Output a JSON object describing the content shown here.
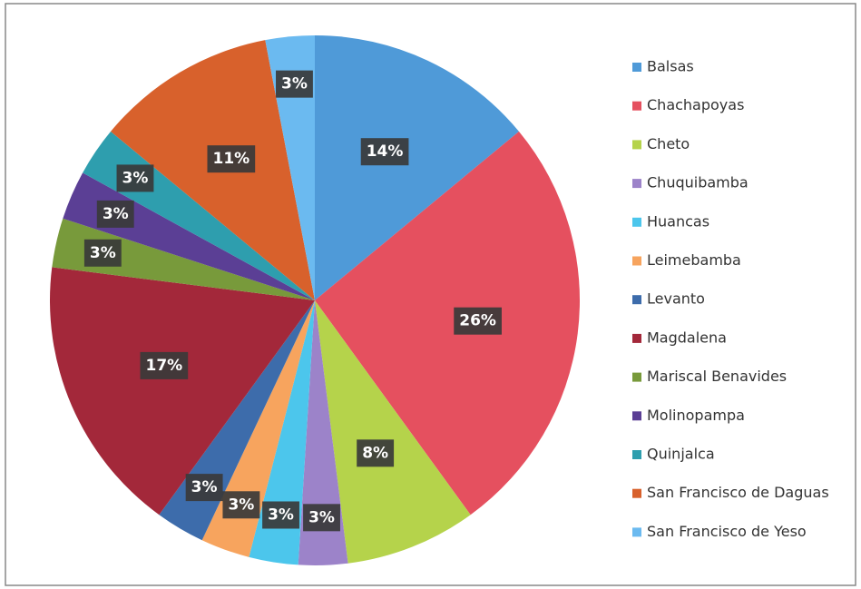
{
  "chart_data": {
    "type": "pie",
    "categories": [
      "Balsas",
      "Chachapoyas",
      "Cheto",
      "Chuquibamba",
      "Huancas",
      "Leimebamba",
      "Levanto",
      "Magdalena",
      "Mariscal Benavides",
      "Molinopampa",
      "Quinjalca",
      "San Francisco de Daguas",
      "San Francisco de Yeso"
    ],
    "values": [
      14,
      26,
      8,
      3,
      3,
      3,
      3,
      17,
      3,
      3,
      3,
      11,
      3
    ],
    "value_labels": [
      "14%",
      "26%",
      "8%",
      "3%",
      "3%",
      "3%",
      "3%",
      "17%",
      "3%",
      "3%",
      "3%",
      "11%",
      "3%"
    ],
    "colors": [
      "#4f9ad8",
      "#e5505f",
      "#b5d34b",
      "#9c83c9",
      "#4cc6ec",
      "#f7a45e",
      "#3d6cab",
      "#a3283a",
      "#789a3b",
      "#5b3f95",
      "#2e9eae",
      "#d8612c",
      "#6bbaf0"
    ],
    "legend": "right"
  }
}
